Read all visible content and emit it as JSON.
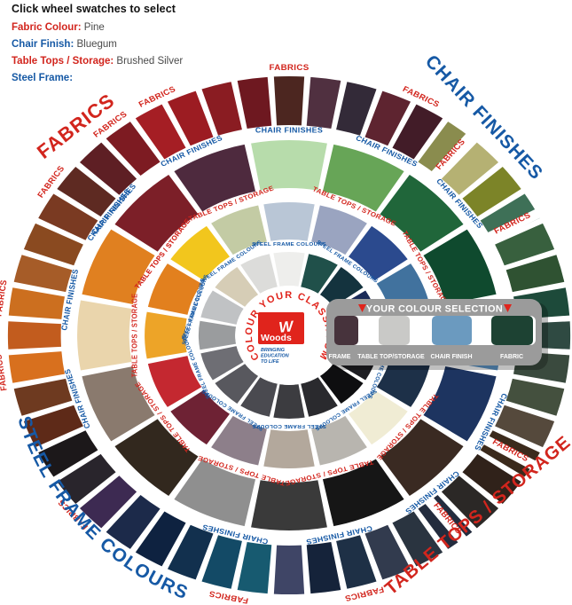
{
  "header": {
    "instruction": "Click wheel swatches to select",
    "selections": [
      {
        "label": "Fabric Colour:",
        "value": "Pine",
        "color_class": "red"
      },
      {
        "label": "Chair Finish:",
        "value": "Bluegum",
        "color_class": "blue"
      },
      {
        "label": "Table Tops / Storage:",
        "value": "Brushed Silver",
        "color_class": "red"
      },
      {
        "label": "Steel Frame:",
        "value": "",
        "color_class": "blue"
      }
    ]
  },
  "colors": {
    "red": "#d2251d",
    "blue": "#1659a5",
    "logo_red": "#e0241c",
    "panel_gray": "#9b9b9b"
  },
  "panel": {
    "title": "YOUR COLOUR SELECTION",
    "arrow_icon": "down-triangle",
    "swatches": [
      {
        "label": "FRAME",
        "color": "#47333c"
      },
      {
        "label": "TABLE TOP/STORAGE",
        "color": "#c9c9c7"
      },
      {
        "label": "CHAIR FINISH",
        "color": "#6b9abf"
      },
      {
        "label": "FABRIC",
        "color": "#1d4233"
      }
    ]
  },
  "center": {
    "arc_text": "COLOUR YOUR CLASSROOM",
    "logo_mark": "W",
    "logo_text": "Woods",
    "tagline_lines": [
      "BRINGING",
      "EDUCATION",
      "TO LIFE"
    ]
  },
  "corner_labels": [
    {
      "text": "FABRICS",
      "color": "#d2251d"
    },
    {
      "text": "CHAIR FINISHES",
      "color": "#1659a5"
    },
    {
      "text": "STEEL FRAME COLOURS",
      "color": "#1659a5"
    },
    {
      "text": "TABLE TOPS / STORAGE",
      "color": "#d2251d"
    }
  ],
  "wheel": {
    "rings": [
      {
        "id": "fabrics",
        "label": "FABRICS",
        "label_color": "#d2251d",
        "colors": [
          "#4c2620",
          "#503040",
          "#332a38",
          "#5e2430",
          "#421c28",
          "#8a8c4e",
          "#b5b173",
          "#7c8428",
          "#3e7057",
          "#38603e",
          "#2f5232",
          "#1d4a3a",
          "#2f4a42",
          "#3a4a3e",
          "#44503e",
          "#55493c",
          "#3b2a1c",
          "#30221a",
          "#2b2826",
          "#232c3e",
          "#2a3440",
          "#323b4e",
          "#1e3046",
          "#15233a",
          "#3f4566",
          "#175a70",
          "#134a66",
          "#12304e",
          "#0e2240",
          "#1c2a4a",
          "#3d2a52",
          "#29252c",
          "#1c181a",
          "#5e2a18",
          "#6e3a20",
          "#d8701e",
          "#c25c1e",
          "#cc6f1f",
          "#a65c28",
          "#8a4a20",
          "#7a3a22",
          "#5e2a22",
          "#5e1f24",
          "#7d1b22",
          "#a51e24",
          "#9c1c22",
          "#8a1c22",
          "#6e1820"
        ]
      },
      {
        "id": "chair-finishes",
        "label": "CHAIR FINISHES",
        "label_color": "#1659a5",
        "colors": [
          "#b7dcab",
          "#67a557",
          "#20663a",
          "#0f4a2e",
          "#5b93c4",
          "#1d3460",
          "#3a2a22",
          "#161616",
          "#3a3a3a",
          "#8f8f8f",
          "#32281e",
          "#8a7a6e",
          "#ead5ac",
          "#e08020",
          "#7c1f28",
          "#4e2a3e"
        ]
      },
      {
        "id": "table-tops-storage",
        "label": "TABLE TOPS / STORAGE",
        "label_color": "#d2251d",
        "colors": [
          "#b9c6d6",
          "#9aa4c0",
          "#2b4a8e",
          "#41729e",
          "#b4b4b2",
          "#1d3048",
          "#f0ecd4",
          "#b8b5af",
          "#b3a89c",
          "#8d7f8a",
          "#6e2234",
          "#c42830",
          "#eda428",
          "#e2801e",
          "#f2c61d",
          "#c3cba4"
        ]
      },
      {
        "id": "steel-frame-colours",
        "label": "STEEL FRAME COLOURS",
        "label_color": "#1659a5",
        "colors": [
          "#eeeeec",
          "#20504a",
          "#14333e",
          "#1a2a58",
          "#3e4a5a",
          "#1e1e22",
          "#0e0e10",
          "#2a2a2e",
          "#3c3c40",
          "#4a4a50",
          "#58585e",
          "#6e6e74",
          "#9a9c9e",
          "#c0c2c4",
          "#d6cdb6",
          "#dcdcda"
        ]
      }
    ]
  }
}
